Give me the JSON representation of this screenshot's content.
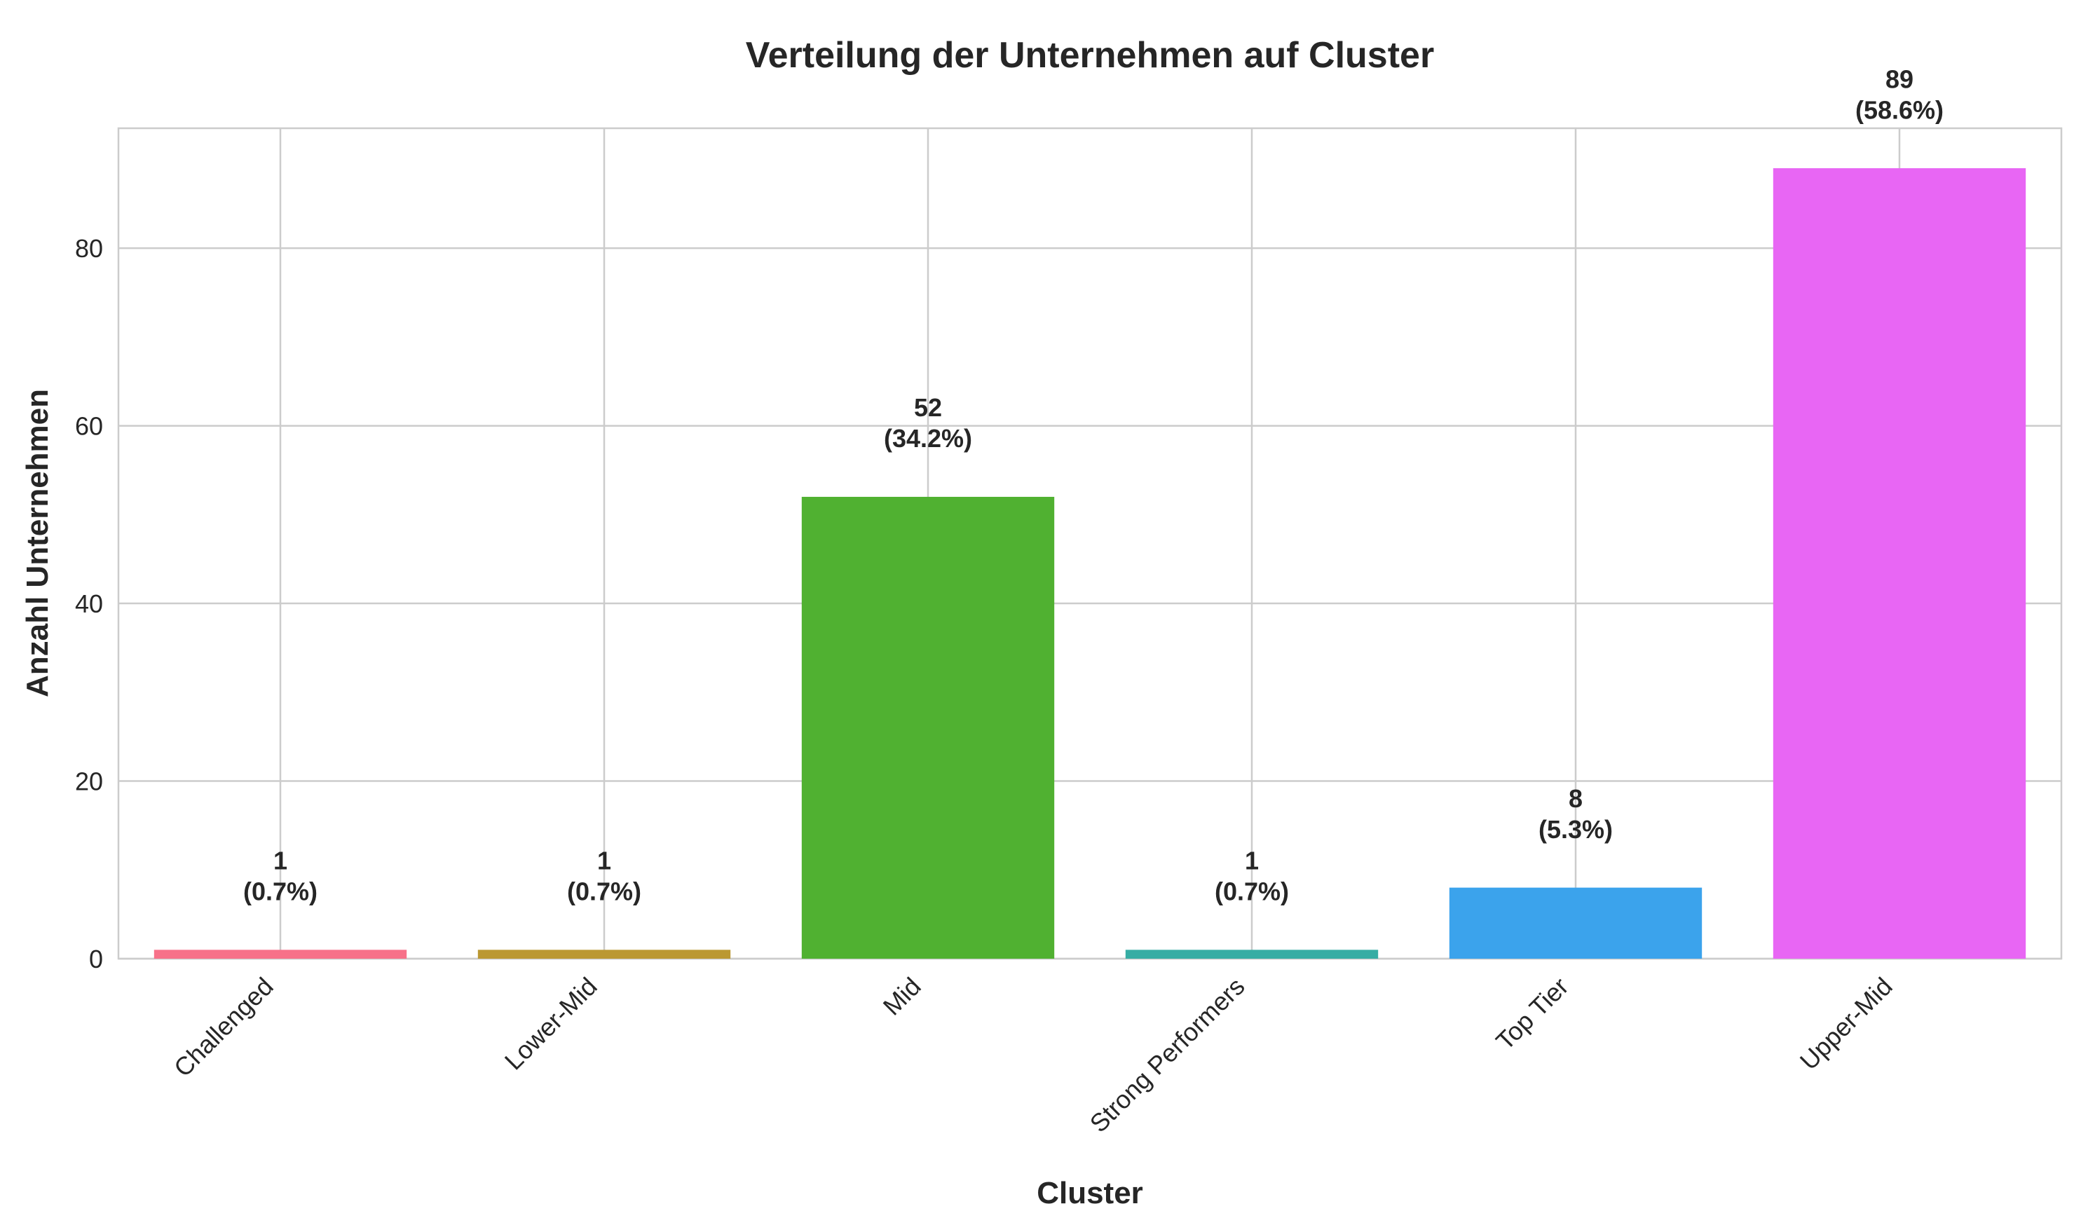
{
  "chart_data": {
    "type": "bar",
    "title": "Verteilung der Unternehmen auf Cluster",
    "xlabel": "Cluster",
    "ylabel": "Anzahl Unternehmen",
    "categories": [
      "Challenged",
      "Lower-Mid",
      "Mid",
      "Strong Performers",
      "Top Tier",
      "Upper-Mid"
    ],
    "values": [
      1,
      1,
      52,
      1,
      8,
      89
    ],
    "value_labels": [
      "1",
      "1",
      "52",
      "1",
      "8",
      "89"
    ],
    "percent_labels": [
      "(0.7%)",
      "(0.7%)",
      "(34.2%)",
      "(0.7%)",
      "(5.3%)",
      "(58.6%)"
    ],
    "colors": [
      "#f77189",
      "#bb9832",
      "#50b131",
      "#36ada4",
      "#3ba3ec",
      "#e866f4"
    ],
    "ylim": [
      0,
      93.5
    ],
    "yticks": [
      0,
      20,
      40,
      60,
      80
    ],
    "grid": true,
    "legend": "none"
  }
}
